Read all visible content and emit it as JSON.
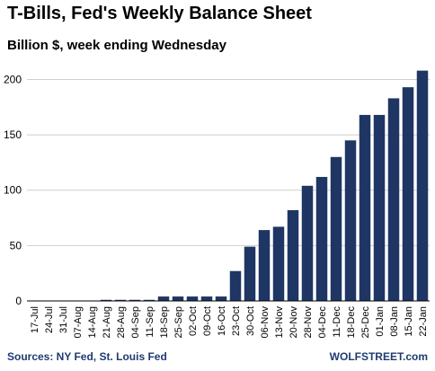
{
  "title": "T-Bills, Fed's Weekly Balance Sheet",
  "subtitle": "Billion $, week ending Wednesday",
  "sources": "Sources: NY Fed, St. Louis Fed",
  "brand": "WOLFSTREET.com",
  "colors": {
    "bar": "#1f3664",
    "grid": "#cfcfcf",
    "axis": "#000000",
    "footer": "#1f3b70"
  },
  "chart_data": {
    "type": "bar",
    "categories": [
      "17-Jul",
      "24-Jul",
      "31-Jul",
      "07-Aug",
      "14-Aug",
      "21-Aug",
      "28-Aug",
      "04-Sep",
      "11-Sep",
      "18-Sep",
      "25-Sep",
      "02-Oct",
      "09-Oct",
      "16-Oct",
      "23-Oct",
      "30-Oct",
      "06-Nov",
      "13-Nov",
      "20-Nov",
      "28-Nov",
      "04-Dec",
      "11-Dec",
      "18-Dec",
      "25-Dec",
      "01-Jan",
      "08-Jan",
      "15-Jan",
      "22-Jan"
    ],
    "values": [
      0,
      0,
      0,
      0,
      0,
      1,
      1,
      1,
      1,
      4,
      4,
      4,
      4,
      4,
      27,
      49,
      64,
      67,
      82,
      104,
      112,
      130,
      145,
      168,
      168,
      183,
      193,
      208
    ],
    "ylim": [
      0,
      215
    ],
    "yticks": [
      0,
      50,
      100,
      150,
      200
    ],
    "grid": true
  }
}
